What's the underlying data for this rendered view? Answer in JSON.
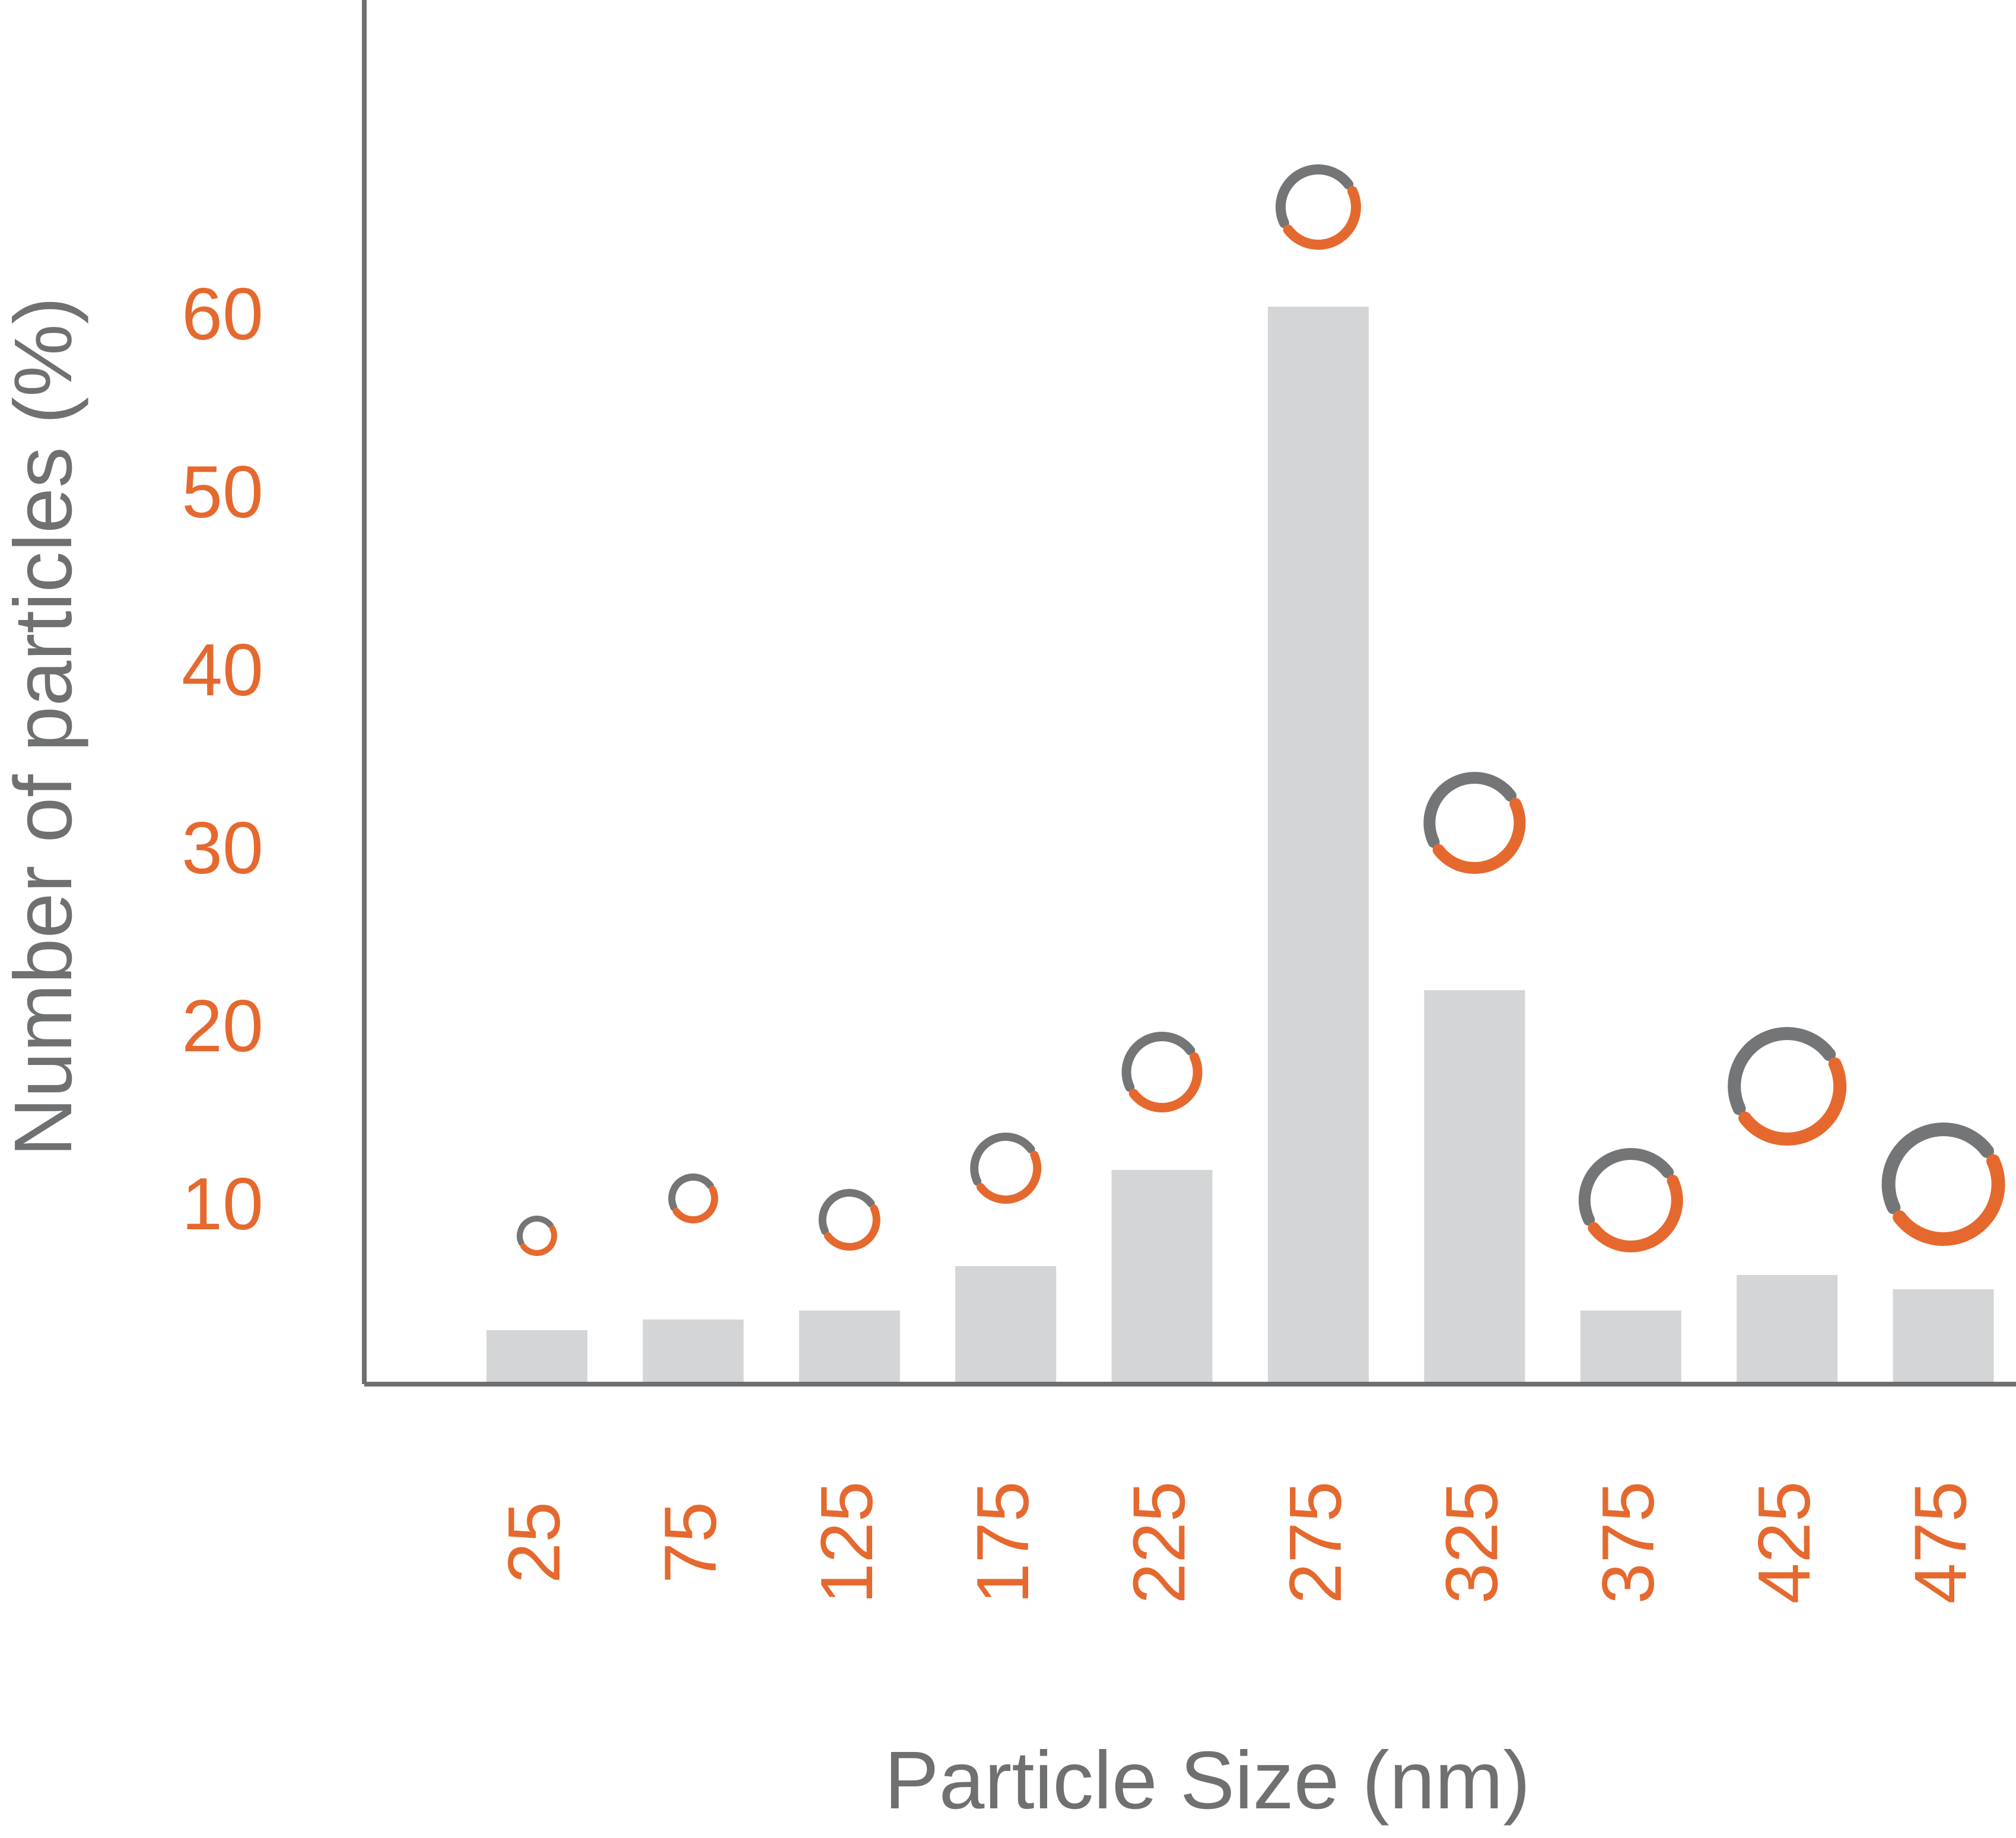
{
  "chart_data": {
    "type": "bar",
    "title": "",
    "xlabel": "Particle Size (nm)",
    "ylabel": "Number of particles (%)",
    "ylim": [
      0,
      78
    ],
    "yticks": [
      10,
      20,
      30,
      40,
      50,
      60
    ],
    "yticks_labels": [
      "10",
      "20",
      "30",
      "40",
      "50",
      "60"
    ],
    "categories": [
      "25",
      "75",
      "125",
      "175",
      "225",
      "275",
      "325",
      "375",
      "425",
      "475"
    ],
    "values": [
      2.9,
      3.5,
      4.0,
      6.5,
      11.9,
      60.4,
      22.0,
      4.0,
      6.0,
      5.2
    ],
    "markers": {
      "description": "ring-shaped particle icons above each bar, ring size grows with particle size",
      "y": [
        8.2,
        10.3,
        9.1,
        12.0,
        17.4,
        66.0,
        31.4,
        10.2,
        16.6,
        11.1
      ]
    },
    "grid": false,
    "legend": "none"
  },
  "colors": {
    "bar": "#d4d5d6",
    "axis": "#6e7071",
    "accent": "#e5692e",
    "ring_gray": "#737576",
    "ring_orange": "#e5692e"
  }
}
